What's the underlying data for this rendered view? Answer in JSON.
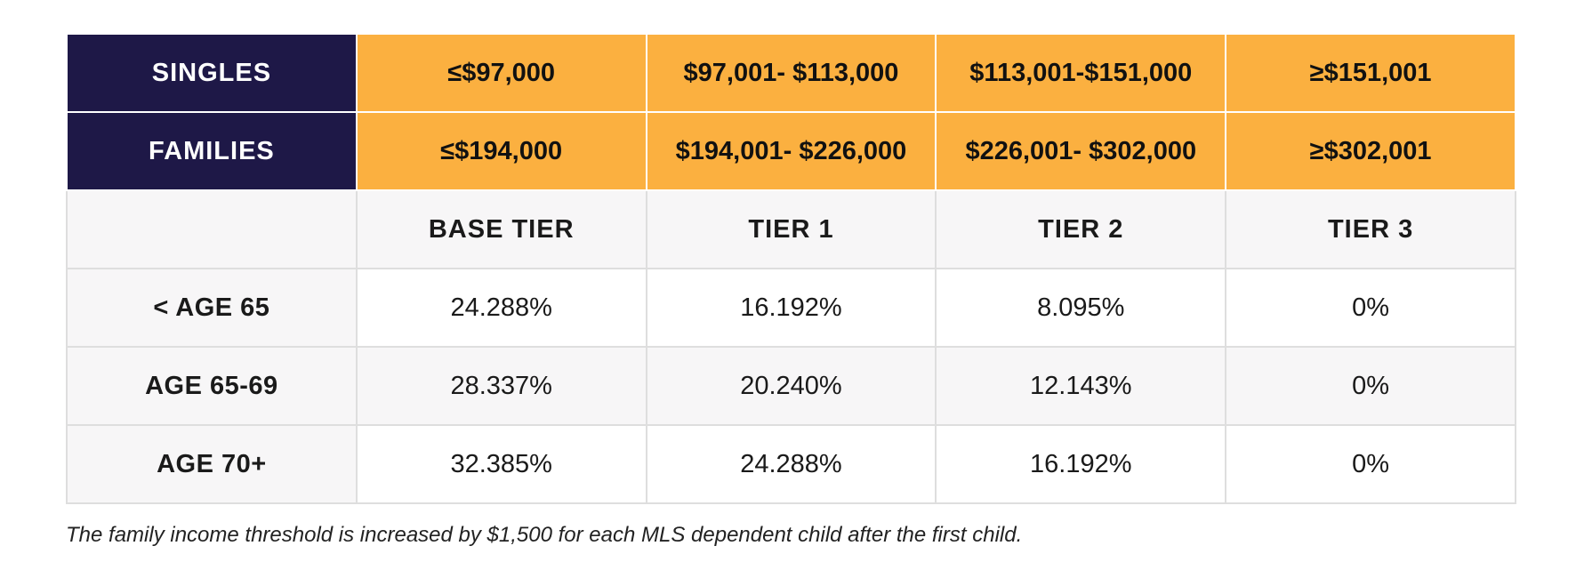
{
  "table": {
    "income_rows": [
      {
        "label": "SINGLES",
        "cells": [
          "≤$97,000",
          "$97,001- $113,000",
          "$113,001-$151,000",
          "≥$151,001"
        ]
      },
      {
        "label": "FAMILIES",
        "cells": [
          "≤$194,000",
          "$194,001- $226,000",
          "$226,001- $302,000",
          "≥$302,001"
        ]
      }
    ],
    "tier_header": {
      "label": "",
      "tiers": [
        "BASE TIER",
        "TIER 1",
        "TIER 2",
        "TIER 3"
      ]
    },
    "age_rows": [
      {
        "label": "< AGE 65",
        "rates": [
          "24.288%",
          "16.192%",
          "8.095%",
          "0%"
        ]
      },
      {
        "label": "AGE 65-69",
        "rates": [
          "28.337%",
          "20.240%",
          "12.143%",
          "0%"
        ]
      },
      {
        "label": "AGE 70+",
        "rates": [
          "32.385%",
          "24.288%",
          "16.192%",
          "0%"
        ]
      }
    ]
  },
  "footnote": "The family income threshold is increased by $1,500 for each MLS dependent child after the first child.",
  "colors": {
    "label_bg": "#1e1847",
    "income_bg": "#fbb040",
    "header_bg": "#f7f6f7"
  }
}
